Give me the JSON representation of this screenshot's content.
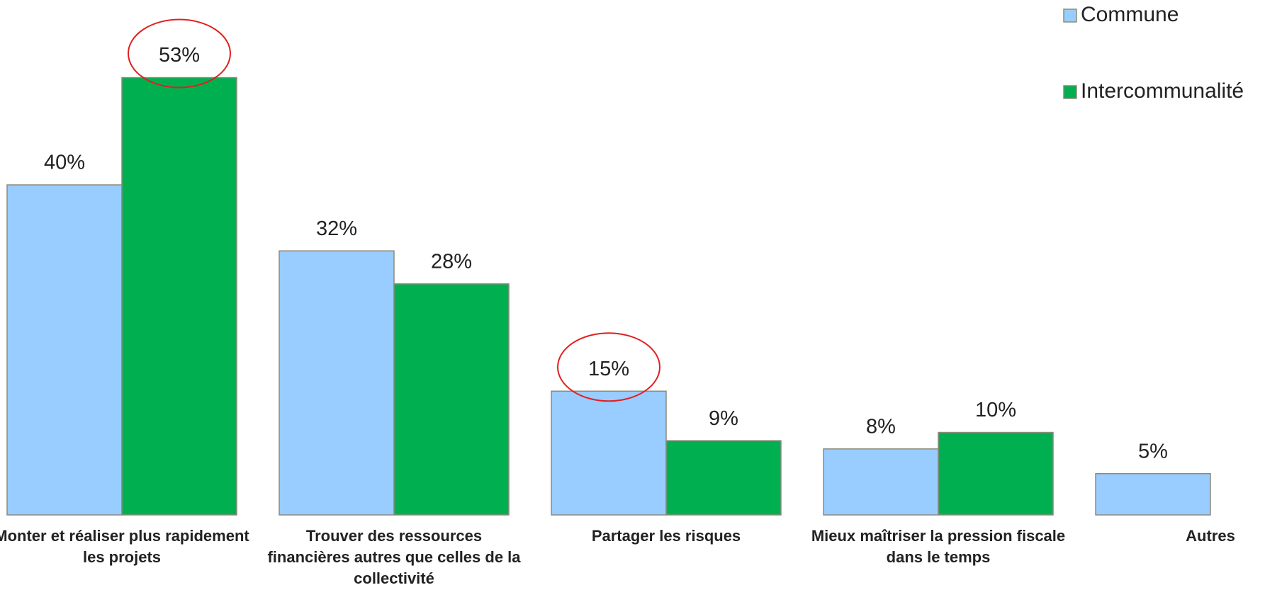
{
  "chart_data": {
    "type": "bar",
    "categories": [
      "Monter et réaliser plus rapidement les projets",
      "Trouver des ressources financières autres que celles de la collectivité",
      "Partager les risques",
      "Mieux maîtriser la pression fiscale dans le temps",
      "Autres"
    ],
    "series": [
      {
        "name": "Commune",
        "color": "#99ccff",
        "values": [
          40,
          32,
          15,
          8,
          5
        ],
        "value_labels": [
          "40%",
          "32%",
          "15%",
          "8%",
          "5%"
        ]
      },
      {
        "name": "Intercommunalité",
        "color": "#00b050",
        "values": [
          53,
          28,
          9,
          10,
          null
        ],
        "value_labels": [
          "53%",
          "28%",
          "9%",
          "10%",
          null
        ]
      }
    ],
    "ylim": [
      0,
      60
    ],
    "grid": false,
    "legend": "top-right"
  }
}
